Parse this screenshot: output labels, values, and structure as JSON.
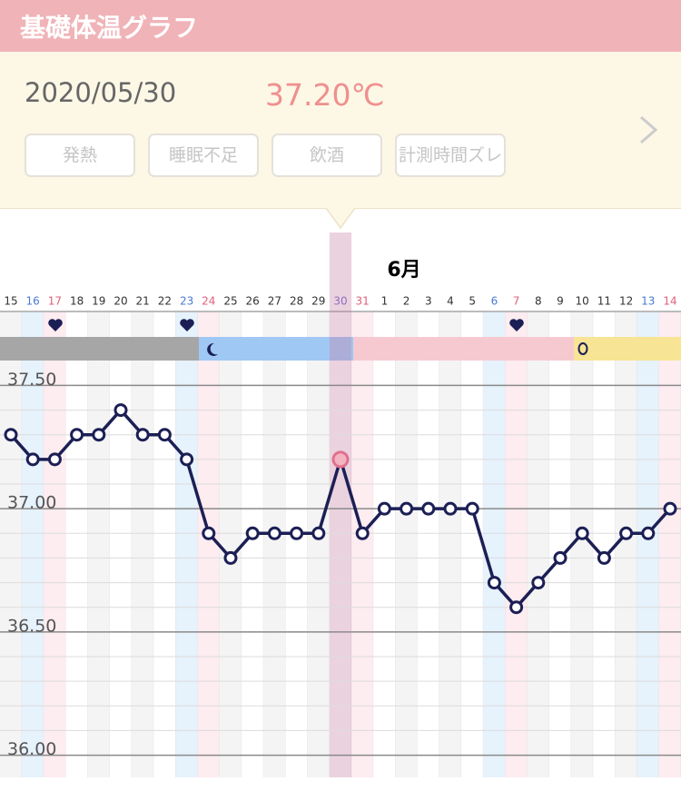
{
  "header": {
    "title": "基礎体温グラフ"
  },
  "record": {
    "date": "2020/05/30",
    "temperature": "37.20℃"
  },
  "tags": [
    "発熱",
    "睡眠不足",
    "飲酒",
    "計測時間ズレ"
  ],
  "chart_data": {
    "type": "line",
    "annotation": "6月",
    "categories": [
      "15",
      "16",
      "17",
      "18",
      "19",
      "20",
      "21",
      "22",
      "23",
      "24",
      "25",
      "26",
      "27",
      "28",
      "29",
      "30",
      "31",
      "1",
      "2",
      "3",
      "4",
      "5",
      "6",
      "7",
      "8",
      "9",
      "10",
      "11",
      "12",
      "13",
      "14"
    ],
    "category_colors": [
      "#333",
      "#4a7bd0",
      "#e0607a",
      "#333",
      "#333",
      "#333",
      "#333",
      "#333",
      "#4a7bd0",
      "#e0607a",
      "#333",
      "#333",
      "#333",
      "#333",
      "#333",
      "#8e6fc0",
      "#e0607a",
      "#333",
      "#333",
      "#333",
      "#333",
      "#333",
      "#4a7bd0",
      "#e0607a",
      "#333",
      "#333",
      "#333",
      "#333",
      "#333",
      "#4a7bd0",
      "#e0607a"
    ],
    "highlight_category": "30",
    "series": [
      {
        "color": "#1c1f55",
        "values": [
          37.3,
          37.2,
          37.2,
          37.3,
          37.3,
          37.4,
          37.3,
          37.3,
          37.2,
          36.9,
          36.8,
          36.9,
          36.9,
          36.9,
          36.9,
          37.2,
          36.9,
          37.0,
          37.0,
          37.0,
          37.0,
          37.0,
          36.7,
          36.6,
          36.7,
          36.8,
          36.9,
          36.8,
          36.9,
          36.9,
          37.0
        ]
      }
    ],
    "ylim": [
      35.91,
      37.59
    ],
    "yticks": [
      {
        "value": 36.0,
        "label": "36.00"
      },
      {
        "value": 36.5,
        "label": "36.50"
      },
      {
        "value": 37.0,
        "label": "37.00"
      },
      {
        "value": 37.5,
        "label": "37.50"
      }
    ],
    "minor_yticks": [
      36.1,
      36.2,
      36.3,
      36.4,
      36.6,
      36.7,
      36.8,
      36.9,
      37.1,
      37.2,
      37.3,
      37.4
    ],
    "grid": true
  }
}
